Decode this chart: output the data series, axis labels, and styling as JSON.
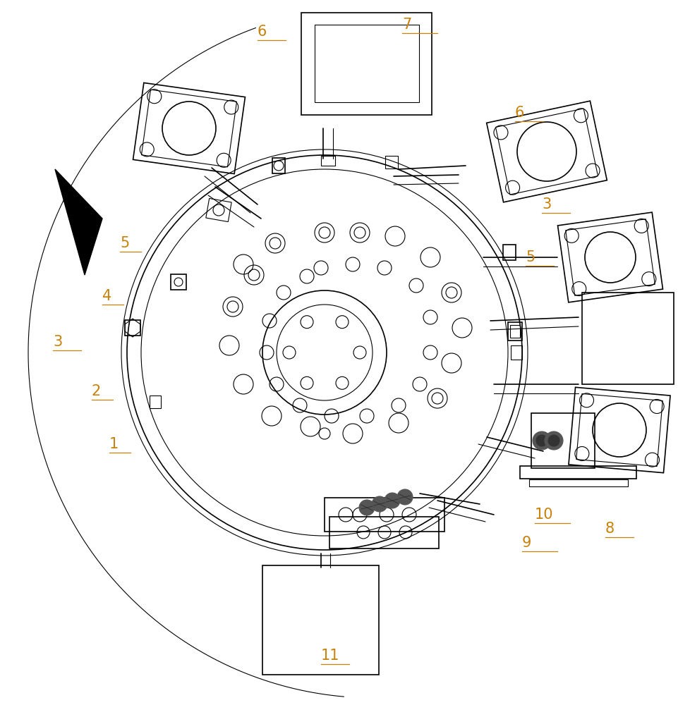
{
  "bg_color": "#ffffff",
  "line_color": "#000000",
  "label_color": "#c8820a",
  "fig_width": 9.79,
  "fig_height": 10.0,
  "dpi": 100
}
